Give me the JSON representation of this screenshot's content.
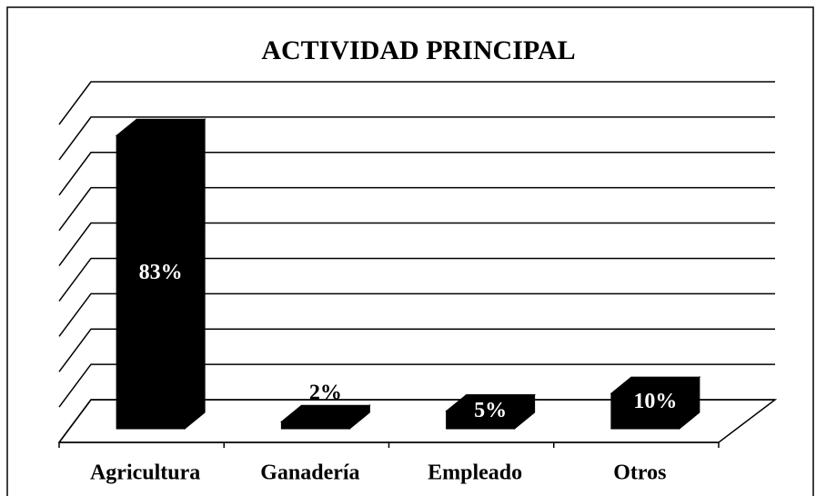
{
  "chart_data": {
    "type": "bar3d",
    "title": "ACTIVIDAD PRINCIPAL",
    "categories": [
      "Agricultura",
      "Ganadería",
      "Empleado",
      "Otros"
    ],
    "values": [
      83,
      2,
      5,
      10
    ],
    "value_labels": [
      "83%",
      "2%",
      "5%",
      "10%"
    ],
    "color": "#000000",
    "ylim": [
      0,
      90
    ],
    "yticks": [
      0,
      10,
      20,
      30,
      40,
      50,
      60,
      70,
      80,
      90
    ],
    "grid": true
  }
}
